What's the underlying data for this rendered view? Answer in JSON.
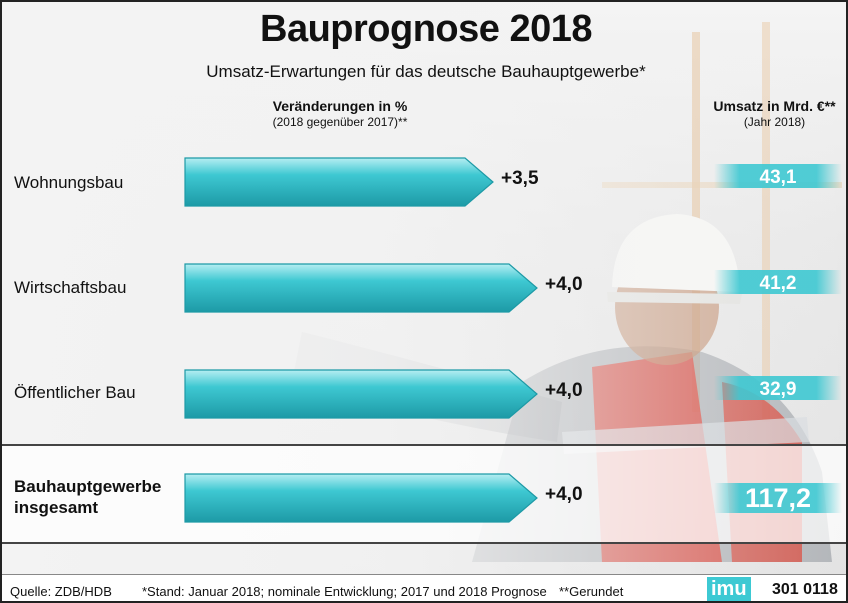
{
  "title": "Bauprognose 2018",
  "subtitle": "Umsatz-Erwartungen für das deutsche Bauhauptgewerbe*",
  "left_header": {
    "main": "Veränderungen in %",
    "sub": "(2018 gegenüber 2017)**"
  },
  "right_header": {
    "main": "Umsatz in Mrd. €**",
    "sub": "(Jahr 2018)"
  },
  "rows": [
    {
      "label": "Wohnungsbau"
    },
    {
      "label": "Wirtschaftsbau"
    },
    {
      "label": "Öffentlicher Bau"
    },
    {
      "label_line1": "Bauhauptgewerbe",
      "label_line2": "insgesamt"
    }
  ],
  "chart_data": {
    "type": "bar",
    "categories": [
      "Wohnungsbau",
      "Wirtschaftsbau",
      "Öffentlicher Bau",
      "Bauhauptgewerbe insgesamt"
    ],
    "series": [
      {
        "name": "Veränderungen in %",
        "values": [
          3.5,
          4.0,
          4.0,
          4.0
        ],
        "labels": [
          "+3,5",
          "+4,0",
          "+4,0",
          "+4,0"
        ]
      },
      {
        "name": "Umsatz in Mrd. €",
        "values": [
          43.1,
          41.2,
          32.9,
          117.2
        ],
        "labels": [
          "43,1",
          "41,2",
          "32,9",
          "117,2"
        ]
      }
    ],
    "title": "Bauprognose 2018",
    "subtitle": "Umsatz-Erwartungen für das deutsche Bauhauptgewerbe*"
  },
  "footer": {
    "source": "Quelle: ZDB/HDB",
    "note1": "*Stand: Januar 2018; nominale Entwicklung; 2017 und 2018 Prognose",
    "note2": "**Gerundet",
    "logo": "imu",
    "code": "301 0118"
  },
  "colors": {
    "bar": "#3ec8d2",
    "bar_light": "#b6eef2",
    "bar_dark": "#1d9aa6"
  }
}
